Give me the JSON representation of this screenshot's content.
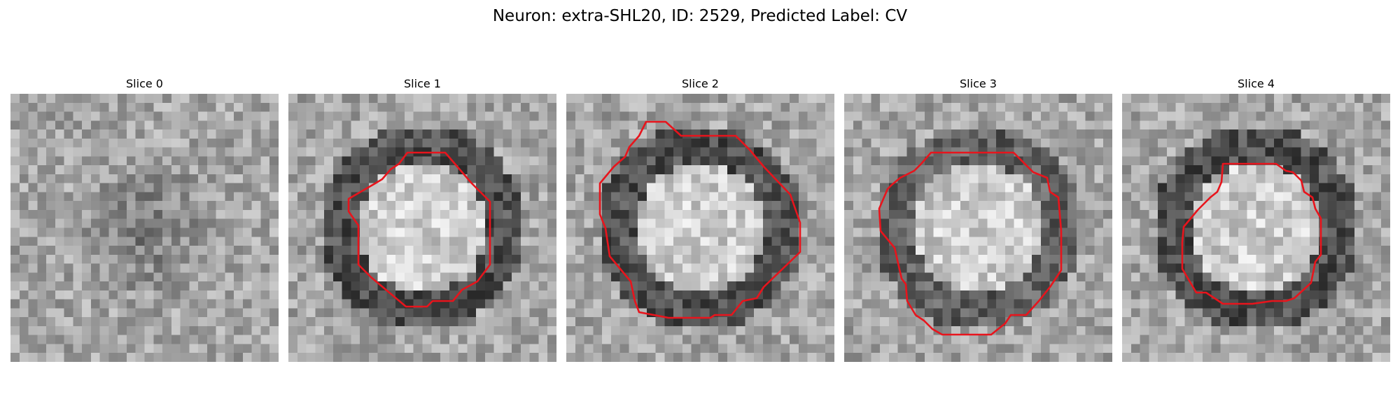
{
  "figure": {
    "title": "Neuron: extra-SHL20, ID: 2529, Predicted Label: CV"
  },
  "colors": {
    "contour": "#e8141c",
    "background": "#ffffff"
  },
  "panels": [
    {
      "title": "Slice 0",
      "has_contour": false,
      "ring_strength": 0.25,
      "center_light": false
    },
    {
      "title": "Slice 1",
      "has_contour": true,
      "ring_strength": 1.0,
      "center_light": true
    },
    {
      "title": "Slice 2",
      "has_contour": true,
      "ring_strength": 1.0,
      "center_light": true
    },
    {
      "title": "Slice 3",
      "has_contour": true,
      "ring_strength": 0.8,
      "center_light": true
    },
    {
      "title": "Slice 4",
      "has_contour": true,
      "ring_strength": 1.0,
      "center_light": true
    }
  ]
}
